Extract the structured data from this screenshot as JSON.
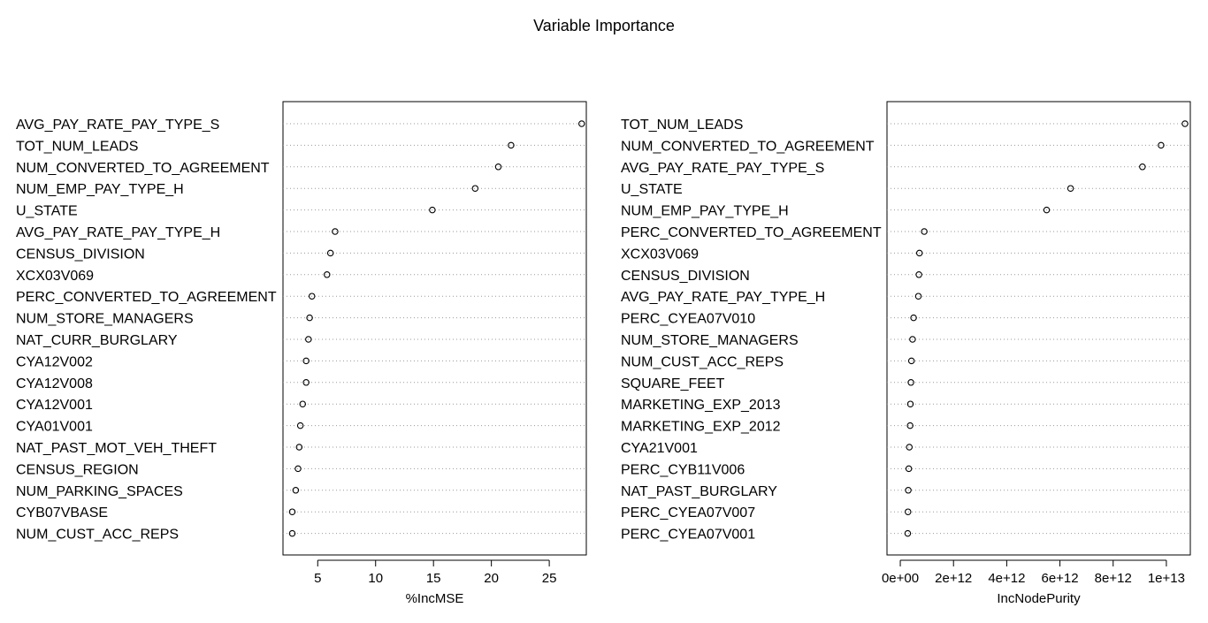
{
  "title": "Variable Importance",
  "chart_data": [
    {
      "type": "scatter",
      "xlabel": "%IncMSE",
      "ylabel": "",
      "xlim": [
        2.0,
        28.2
      ],
      "xticks": [
        5,
        10,
        15,
        20,
        25
      ],
      "xtick_labels": [
        "5",
        "10",
        "15",
        "20",
        "25"
      ],
      "grid": "dotted horizontal",
      "categories": [
        "AVG_PAY_RATE_PAY_TYPE_S",
        "TOT_NUM_LEADS",
        "NUM_CONVERTED_TO_AGREEMENT",
        "NUM_EMP_PAY_TYPE_H",
        "U_STATE",
        "AVG_PAY_RATE_PAY_TYPE_H",
        "CENSUS_DIVISION",
        "XCX03V069",
        "PERC_CONVERTED_TO_AGREEMENT",
        "NUM_STORE_MANAGERS",
        "NAT_CURR_BURGLARY",
        "CYA12V002",
        "CYA12V008",
        "CYA12V001",
        "CYA01V001",
        "NAT_PAST_MOT_VEH_THEFT",
        "CENSUS_REGION",
        "NUM_PARKING_SPACES",
        "CYB07VBASE",
        "NUM_CUST_ACC_REPS"
      ],
      "values": [
        27.8,
        21.7,
        20.6,
        18.6,
        14.9,
        6.5,
        6.1,
        5.8,
        4.5,
        4.3,
        4.2,
        4.0,
        4.0,
        3.7,
        3.5,
        3.4,
        3.3,
        3.1,
        2.8,
        2.8
      ]
    },
    {
      "type": "scatter",
      "xlabel": "IncNodePurity",
      "ylabel": "",
      "xlim": [
        -500000000000.0,
        10900000000000.0
      ],
      "xticks": [
        0,
        2000000000000.0,
        4000000000000.0,
        6000000000000.0,
        8000000000000.0,
        10000000000000.0
      ],
      "xtick_labels": [
        "0e+00",
        "2e+12",
        "4e+12",
        "6e+12",
        "8e+12",
        "1e+13"
      ],
      "grid": "dotted horizontal",
      "categories": [
        "TOT_NUM_LEADS",
        "NUM_CONVERTED_TO_AGREEMENT",
        "AVG_PAY_RATE_PAY_TYPE_S",
        "U_STATE",
        "NUM_EMP_PAY_TYPE_H",
        "PERC_CONVERTED_TO_AGREEMENT",
        "XCX03V069",
        "CENSUS_DIVISION",
        "AVG_PAY_RATE_PAY_TYPE_H",
        "PERC_CYEA07V010",
        "NUM_STORE_MANAGERS",
        "NUM_CUST_ACC_REPS",
        "SQUARE_FEET",
        "MARKETING_EXP_2013",
        "MARKETING_EXP_2012",
        "CYA21V001",
        "PERC_CYB11V006",
        "NAT_PAST_BURGLARY",
        "PERC_CYEA07V007",
        "PERC_CYEA07V001"
      ],
      "values": [
        10700000000000.0,
        9800000000000.0,
        9100000000000.0,
        6400000000000.0,
        5500000000000.0,
        900000000000.0,
        720000000000.0,
        700000000000.0,
        680000000000.0,
        500000000000.0,
        460000000000.0,
        420000000000.0,
        400000000000.0,
        380000000000.0,
        370000000000.0,
        340000000000.0,
        320000000000.0,
        300000000000.0,
        290000000000.0,
        280000000000.0
      ]
    }
  ]
}
